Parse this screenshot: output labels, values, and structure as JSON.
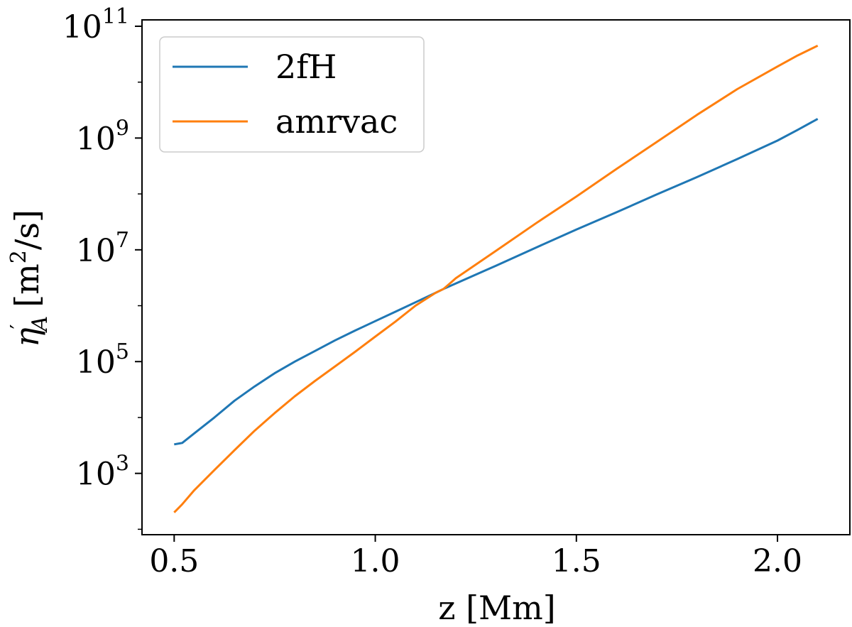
{
  "chart_data": {
    "type": "line",
    "xlabel": "z [Mm]",
    "ylabel": {
      "symbol": "η",
      "prime": "′",
      "subscript": "A",
      "unit_prefix": "[m",
      "unit_sup": "2",
      "unit_suffix": "/s]"
    },
    "xscale": "linear",
    "yscale": "log",
    "xlim": [
      0.42,
      2.18
    ],
    "ylim": [
      80,
      130000000000.0
    ],
    "grid": false,
    "legend_position": "top-left",
    "x_ticks": [
      {
        "value": 0.5,
        "label": "0.5"
      },
      {
        "value": 1.0,
        "label": "1.0"
      },
      {
        "value": 1.5,
        "label": "1.5"
      },
      {
        "value": 2.0,
        "label": "2.0"
      }
    ],
    "y_ticks": [
      {
        "value": 1000,
        "base": "10",
        "exp": "3"
      },
      {
        "value": 100000,
        "base": "10",
        "exp": "5"
      },
      {
        "value": 10000000,
        "base": "10",
        "exp": "7"
      },
      {
        "value": 1000000000,
        "base": "10",
        "exp": "9"
      },
      {
        "value": 100000000000,
        "base": "10",
        "exp": "11"
      }
    ],
    "series": [
      {
        "name": "2fH",
        "color": "#1f77b4",
        "x": [
          0.5,
          0.52,
          0.55,
          0.6,
          0.65,
          0.7,
          0.75,
          0.8,
          0.85,
          0.9,
          0.95,
          1.0,
          1.05,
          1.1,
          1.15,
          1.17,
          1.2,
          1.3,
          1.4,
          1.5,
          1.6,
          1.7,
          1.8,
          1.9,
          2.0,
          2.05,
          2.1
        ],
        "y": [
          3300,
          3500,
          5200,
          10000,
          20000,
          36000,
          62000,
          100000,
          155000,
          240000,
          360000,
          530000,
          780000,
          1150000,
          1700000,
          2000000,
          2500000,
          5200000,
          11000000,
          23000000,
          47000000,
          98000000,
          200000000,
          420000000,
          900000000,
          1400000000,
          2200000000
        ]
      },
      {
        "name": "amrvac",
        "color": "#ff7f0e",
        "x": [
          0.5,
          0.52,
          0.55,
          0.6,
          0.65,
          0.7,
          0.75,
          0.8,
          0.85,
          0.9,
          0.95,
          1.0,
          1.05,
          1.1,
          1.15,
          1.17,
          1.2,
          1.3,
          1.4,
          1.5,
          1.6,
          1.7,
          1.8,
          1.9,
          2.0,
          2.05,
          2.1
        ],
        "y": [
          200,
          280,
          500,
          1150,
          2600,
          5800,
          12000,
          24000,
          45000,
          82000,
          150000,
          280000,
          520000,
          1000000,
          1700000,
          2000000,
          3100000,
          9600000,
          30000000,
          90000000,
          280000000,
          850000000,
          2600000000,
          7500000000,
          19000000000,
          30000000000,
          45000000000
        ]
      }
    ]
  }
}
